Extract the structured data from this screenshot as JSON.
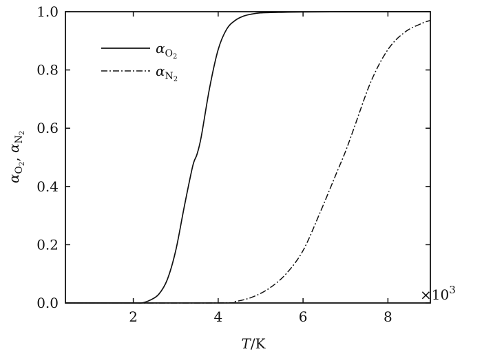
{
  "chart_data": {
    "type": "line",
    "title": "",
    "xlabel": {
      "symbol": "T",
      "unit": "/K"
    },
    "ylabel": {
      "symbol1": "α",
      "sub1": "O",
      "subsub1": "2",
      "sep": ", ",
      "symbol2": "α",
      "sub2": "N",
      "subsub2": "2"
    },
    "x_multiplier": {
      "prefix": "×10",
      "exponent": "3"
    },
    "xlim": [
      0.4,
      9.0
    ],
    "ylim": [
      0.0,
      1.0
    ],
    "x_ticks": [
      2,
      4,
      6,
      8
    ],
    "x_tick_labels": [
      "2",
      "4",
      "6",
      "8"
    ],
    "y_ticks": [
      0.0,
      0.2,
      0.4,
      0.6,
      0.8,
      1.0
    ],
    "y_tick_labels": [
      "0.0",
      "0.2",
      "0.4",
      "0.6",
      "0.8",
      "1.0"
    ],
    "grid": false,
    "legend_position": "top-left",
    "series": [
      {
        "name": "α_O2",
        "label_symbol": "α",
        "label_sub": "O",
        "label_subsub": "2",
        "line_style": "solid",
        "color": "#111111",
        "x": [
          0.4,
          1.5,
          2.0,
          2.2,
          2.4,
          2.6,
          2.8,
          3.0,
          3.2,
          3.4,
          3.5,
          3.6,
          3.8,
          4.0,
          4.2,
          4.4,
          4.6,
          4.8,
          5.0,
          5.5,
          6.0,
          7.0,
          8.0,
          9.0
        ],
        "y": [
          0.0,
          0.0,
          0.0,
          0.0,
          0.01,
          0.03,
          0.08,
          0.18,
          0.33,
          0.47,
          0.51,
          0.57,
          0.74,
          0.87,
          0.94,
          0.97,
          0.985,
          0.992,
          0.996,
          0.998,
          0.999,
          1.0,
          1.0,
          1.0
        ]
      },
      {
        "name": "α_N2",
        "label_symbol": "α",
        "label_sub": "N",
        "label_subsub": "2",
        "line_style": "dash-dot",
        "color": "#111111",
        "x": [
          0.4,
          4.0,
          4.4,
          4.8,
          5.2,
          5.6,
          6.0,
          6.4,
          6.8,
          7.0,
          7.2,
          7.6,
          8.0,
          8.4,
          8.8,
          9.0
        ],
        "y": [
          0.0,
          0.0,
          0.005,
          0.02,
          0.05,
          0.1,
          0.18,
          0.31,
          0.45,
          0.52,
          0.6,
          0.76,
          0.87,
          0.93,
          0.96,
          0.97
        ]
      }
    ]
  }
}
